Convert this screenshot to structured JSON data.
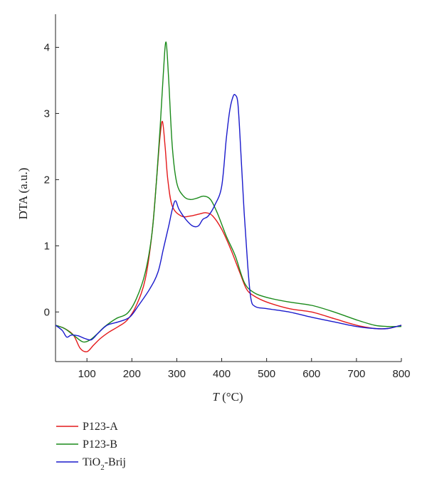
{
  "chart_data": {
    "type": "line",
    "title": "",
    "xlabel_main": "T",
    "xlabel_unit": " (°C)",
    "ylabel": "DTA (a.u.)",
    "xlim": [
      30,
      800
    ],
    "ylim": [
      -0.75,
      4.5
    ],
    "x_ticks": [
      100,
      200,
      300,
      400,
      500,
      600,
      700,
      800
    ],
    "y_ticks": [
      0,
      1,
      2,
      3,
      4
    ],
    "legend_position": "bottom-left",
    "series": [
      {
        "name": "P123-A",
        "color": "#e41a1c",
        "points": [
          [
            30,
            -0.2
          ],
          [
            50,
            -0.25
          ],
          [
            70,
            -0.35
          ],
          [
            85,
            -0.55
          ],
          [
            100,
            -0.6
          ],
          [
            115,
            -0.5
          ],
          [
            130,
            -0.4
          ],
          [
            150,
            -0.3
          ],
          [
            170,
            -0.22
          ],
          [
            190,
            -0.12
          ],
          [
            210,
            0.1
          ],
          [
            230,
            0.5
          ],
          [
            245,
            1.2
          ],
          [
            255,
            2.0
          ],
          [
            262,
            2.6
          ],
          [
            268,
            2.88
          ],
          [
            274,
            2.5
          ],
          [
            280,
            2.0
          ],
          [
            290,
            1.6
          ],
          [
            310,
            1.45
          ],
          [
            330,
            1.45
          ],
          [
            350,
            1.48
          ],
          [
            365,
            1.5
          ],
          [
            380,
            1.45
          ],
          [
            400,
            1.25
          ],
          [
            420,
            0.95
          ],
          [
            440,
            0.6
          ],
          [
            455,
            0.35
          ],
          [
            470,
            0.25
          ],
          [
            500,
            0.15
          ],
          [
            550,
            0.05
          ],
          [
            600,
            0.0
          ],
          [
            650,
            -0.1
          ],
          [
            700,
            -0.2
          ],
          [
            740,
            -0.25
          ],
          [
            770,
            -0.25
          ],
          [
            800,
            -0.2
          ]
        ]
      },
      {
        "name": "P123-B",
        "color": "#1a8a1a",
        "points": [
          [
            30,
            -0.2
          ],
          [
            50,
            -0.25
          ],
          [
            70,
            -0.35
          ],
          [
            90,
            -0.45
          ],
          [
            105,
            -0.43
          ],
          [
            120,
            -0.35
          ],
          [
            140,
            -0.22
          ],
          [
            165,
            -0.1
          ],
          [
            190,
            -0.02
          ],
          [
            210,
            0.2
          ],
          [
            230,
            0.6
          ],
          [
            245,
            1.2
          ],
          [
            255,
            2.0
          ],
          [
            263,
            2.8
          ],
          [
            270,
            3.6
          ],
          [
            276,
            4.08
          ],
          [
            282,
            3.5
          ],
          [
            290,
            2.5
          ],
          [
            300,
            1.95
          ],
          [
            315,
            1.75
          ],
          [
            330,
            1.7
          ],
          [
            345,
            1.72
          ],
          [
            360,
            1.75
          ],
          [
            375,
            1.7
          ],
          [
            390,
            1.5
          ],
          [
            410,
            1.15
          ],
          [
            430,
            0.85
          ],
          [
            450,
            0.45
          ],
          [
            470,
            0.3
          ],
          [
            500,
            0.22
          ],
          [
            550,
            0.15
          ],
          [
            600,
            0.1
          ],
          [
            650,
            0.0
          ],
          [
            700,
            -0.12
          ],
          [
            740,
            -0.2
          ],
          [
            770,
            -0.22
          ],
          [
            800,
            -0.22
          ]
        ]
      },
      {
        "name": "TiO2-Brij",
        "color": "#1a1acc",
        "points": [
          [
            30,
            -0.2
          ],
          [
            45,
            -0.28
          ],
          [
            55,
            -0.38
          ],
          [
            65,
            -0.35
          ],
          [
            80,
            -0.36
          ],
          [
            95,
            -0.4
          ],
          [
            110,
            -0.42
          ],
          [
            125,
            -0.32
          ],
          [
            145,
            -0.2
          ],
          [
            170,
            -0.15
          ],
          [
            195,
            -0.08
          ],
          [
            215,
            0.1
          ],
          [
            240,
            0.35
          ],
          [
            258,
            0.6
          ],
          [
            270,
            0.95
          ],
          [
            282,
            1.3
          ],
          [
            290,
            1.55
          ],
          [
            297,
            1.68
          ],
          [
            305,
            1.55
          ],
          [
            320,
            1.4
          ],
          [
            335,
            1.3
          ],
          [
            348,
            1.3
          ],
          [
            358,
            1.4
          ],
          [
            370,
            1.45
          ],
          [
            385,
            1.62
          ],
          [
            400,
            1.9
          ],
          [
            410,
            2.6
          ],
          [
            418,
            3.05
          ],
          [
            425,
            3.25
          ],
          [
            430,
            3.28
          ],
          [
            436,
            3.15
          ],
          [
            442,
            2.5
          ],
          [
            450,
            1.5
          ],
          [
            458,
            0.7
          ],
          [
            465,
            0.2
          ],
          [
            475,
            0.08
          ],
          [
            500,
            0.05
          ],
          [
            550,
            0.0
          ],
          [
            600,
            -0.08
          ],
          [
            650,
            -0.15
          ],
          [
            700,
            -0.22
          ],
          [
            740,
            -0.25
          ],
          [
            770,
            -0.25
          ],
          [
            800,
            -0.2
          ]
        ]
      }
    ]
  }
}
